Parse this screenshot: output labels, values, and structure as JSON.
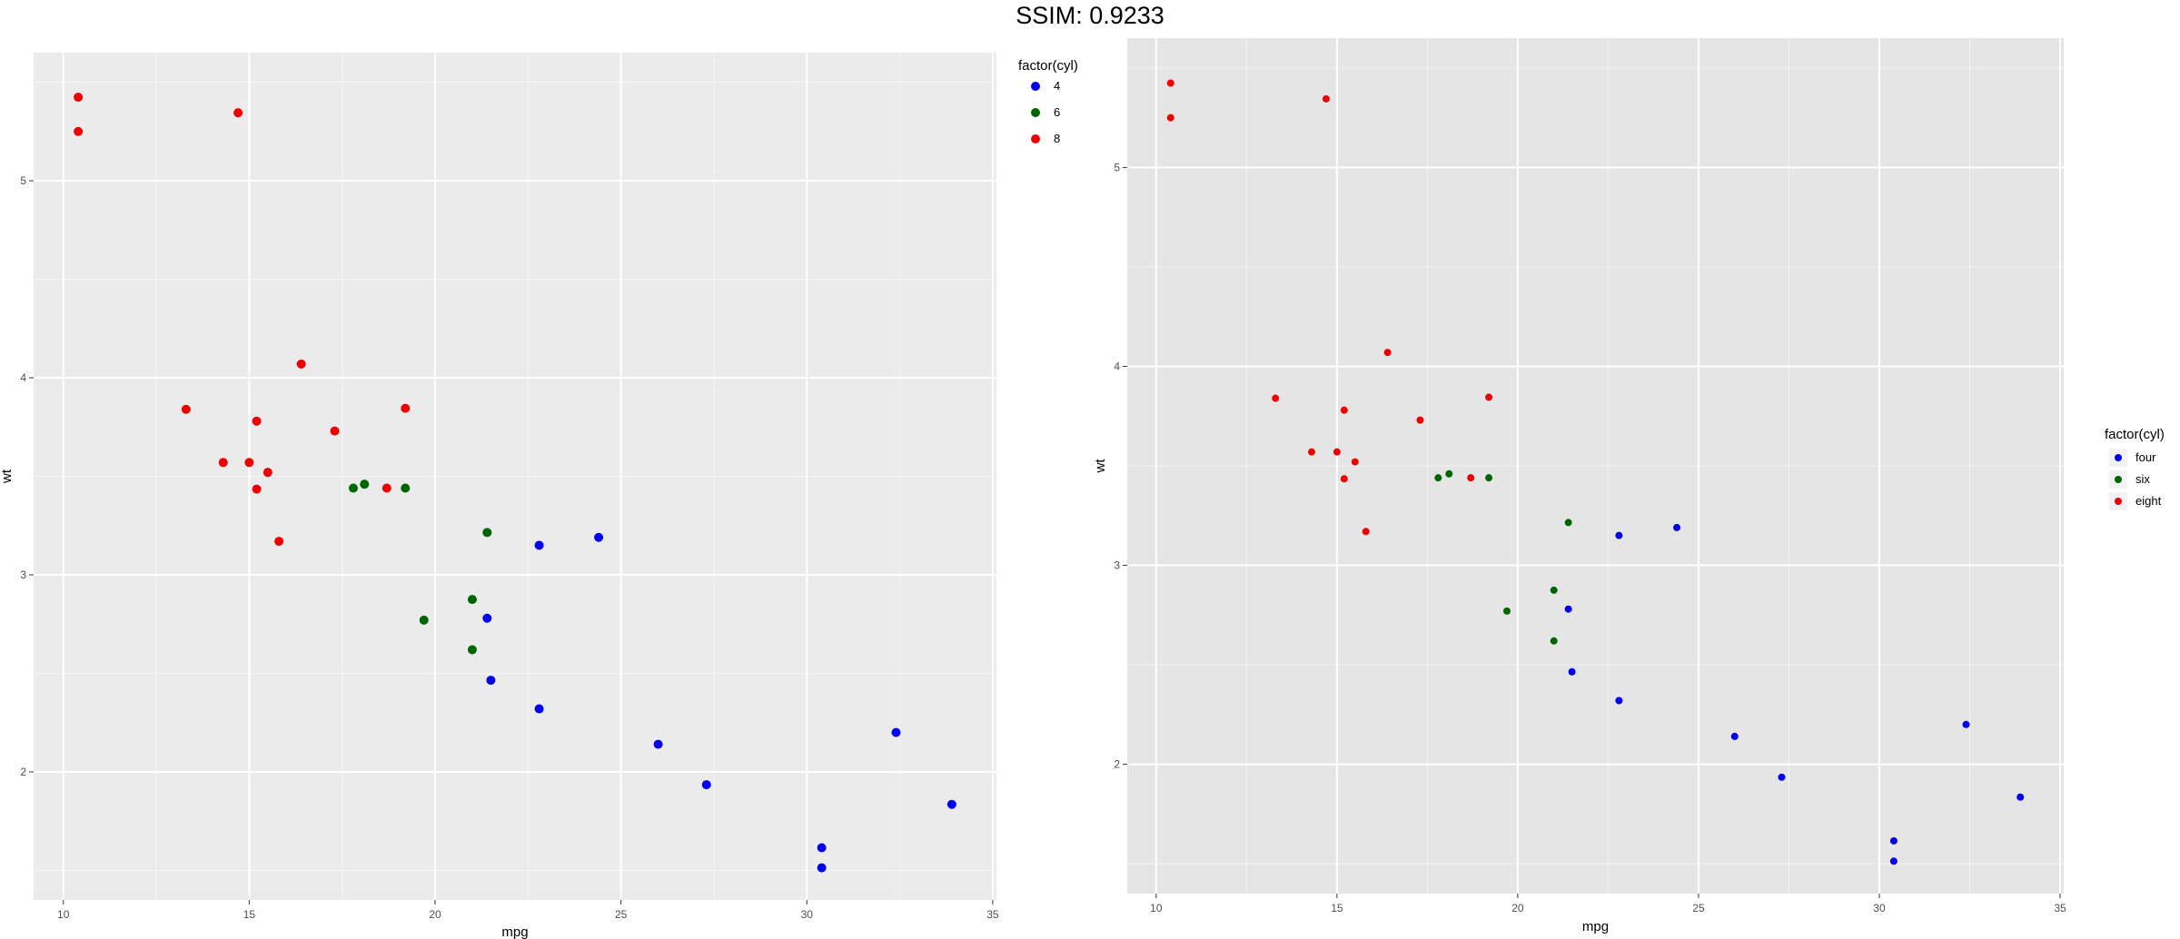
{
  "header": {
    "title": "SSIM: 0.9233"
  },
  "chart_data": [
    {
      "type": "scatter",
      "title": "",
      "xlabel": "mpg",
      "ylabel": "wt",
      "xlim": [
        9.2,
        35.1
      ],
      "ylim": [
        1.35,
        5.65
      ],
      "x_ticks": [
        10,
        15,
        20,
        25,
        30,
        35
      ],
      "y_ticks": [
        2,
        3,
        4,
        5
      ],
      "grid": true,
      "legend": {
        "title": "factor(cyl)",
        "position": "top-right",
        "labels": [
          "4",
          "6",
          "8"
        ]
      },
      "series": [
        {
          "name": "4",
          "color": "#0000ee",
          "points": [
            [
              22.8,
              2.32
            ],
            [
              24.4,
              3.19
            ],
            [
              22.8,
              3.15
            ],
            [
              32.4,
              2.2
            ],
            [
              30.4,
              1.615
            ],
            [
              33.9,
              1.835
            ],
            [
              21.5,
              2.465
            ],
            [
              27.3,
              1.935
            ],
            [
              26.0,
              2.14
            ],
            [
              30.4,
              1.513
            ],
            [
              21.4,
              2.78
            ]
          ]
        },
        {
          "name": "6",
          "color": "#006400",
          "points": [
            [
              21.0,
              2.62
            ],
            [
              21.0,
              2.875
            ],
            [
              21.4,
              3.215
            ],
            [
              18.1,
              3.46
            ],
            [
              19.2,
              3.44
            ],
            [
              17.8,
              3.44
            ],
            [
              19.7,
              2.77
            ]
          ]
        },
        {
          "name": "8",
          "color": "#ee0000",
          "points": [
            [
              18.7,
              3.44
            ],
            [
              14.3,
              3.57
            ],
            [
              16.4,
              4.07
            ],
            [
              17.3,
              3.73
            ],
            [
              15.2,
              3.78
            ],
            [
              10.4,
              5.25
            ],
            [
              10.4,
              5.424
            ],
            [
              14.7,
              5.345
            ],
            [
              15.5,
              3.52
            ],
            [
              15.2,
              3.435
            ],
            [
              13.3,
              3.84
            ],
            [
              19.2,
              3.845
            ],
            [
              15.8,
              3.17
            ],
            [
              15.0,
              3.57
            ]
          ]
        }
      ]
    },
    {
      "type": "scatter",
      "title": "",
      "xlabel": "mpg",
      "ylabel": "wt",
      "xlim": [
        9.2,
        35.1
      ],
      "ylim": [
        1.35,
        5.65
      ],
      "x_ticks": [
        10,
        15,
        20,
        25,
        30,
        35
      ],
      "y_ticks": [
        2,
        3,
        4,
        5
      ],
      "grid": true,
      "legend": {
        "title": "factor(cyl)",
        "position": "right",
        "labels": [
          "four",
          "six",
          "eight"
        ]
      },
      "series": [
        {
          "name": "four",
          "color": "#0000ee",
          "points": [
            [
              22.8,
              2.32
            ],
            [
              24.4,
              3.19
            ],
            [
              22.8,
              3.15
            ],
            [
              32.4,
              2.2
            ],
            [
              30.4,
              1.615
            ],
            [
              33.9,
              1.835
            ],
            [
              21.5,
              2.465
            ],
            [
              27.3,
              1.935
            ],
            [
              26.0,
              2.14
            ],
            [
              30.4,
              1.513
            ],
            [
              21.4,
              2.78
            ]
          ]
        },
        {
          "name": "six",
          "color": "#006400",
          "points": [
            [
              21.0,
              2.62
            ],
            [
              21.0,
              2.875
            ],
            [
              21.4,
              3.215
            ],
            [
              18.1,
              3.46
            ],
            [
              19.2,
              3.44
            ],
            [
              17.8,
              3.44
            ],
            [
              19.7,
              2.77
            ]
          ]
        },
        {
          "name": "eight",
          "color": "#ee0000",
          "points": [
            [
              18.7,
              3.44
            ],
            [
              14.3,
              3.57
            ],
            [
              16.4,
              4.07
            ],
            [
              17.3,
              3.73
            ],
            [
              15.2,
              3.78
            ],
            [
              10.4,
              5.25
            ],
            [
              10.4,
              5.424
            ],
            [
              14.7,
              5.345
            ],
            [
              15.5,
              3.52
            ],
            [
              15.2,
              3.435
            ],
            [
              13.3,
              3.84
            ],
            [
              19.2,
              3.845
            ],
            [
              15.8,
              3.17
            ],
            [
              15.0,
              3.57
            ]
          ]
        }
      ]
    }
  ]
}
